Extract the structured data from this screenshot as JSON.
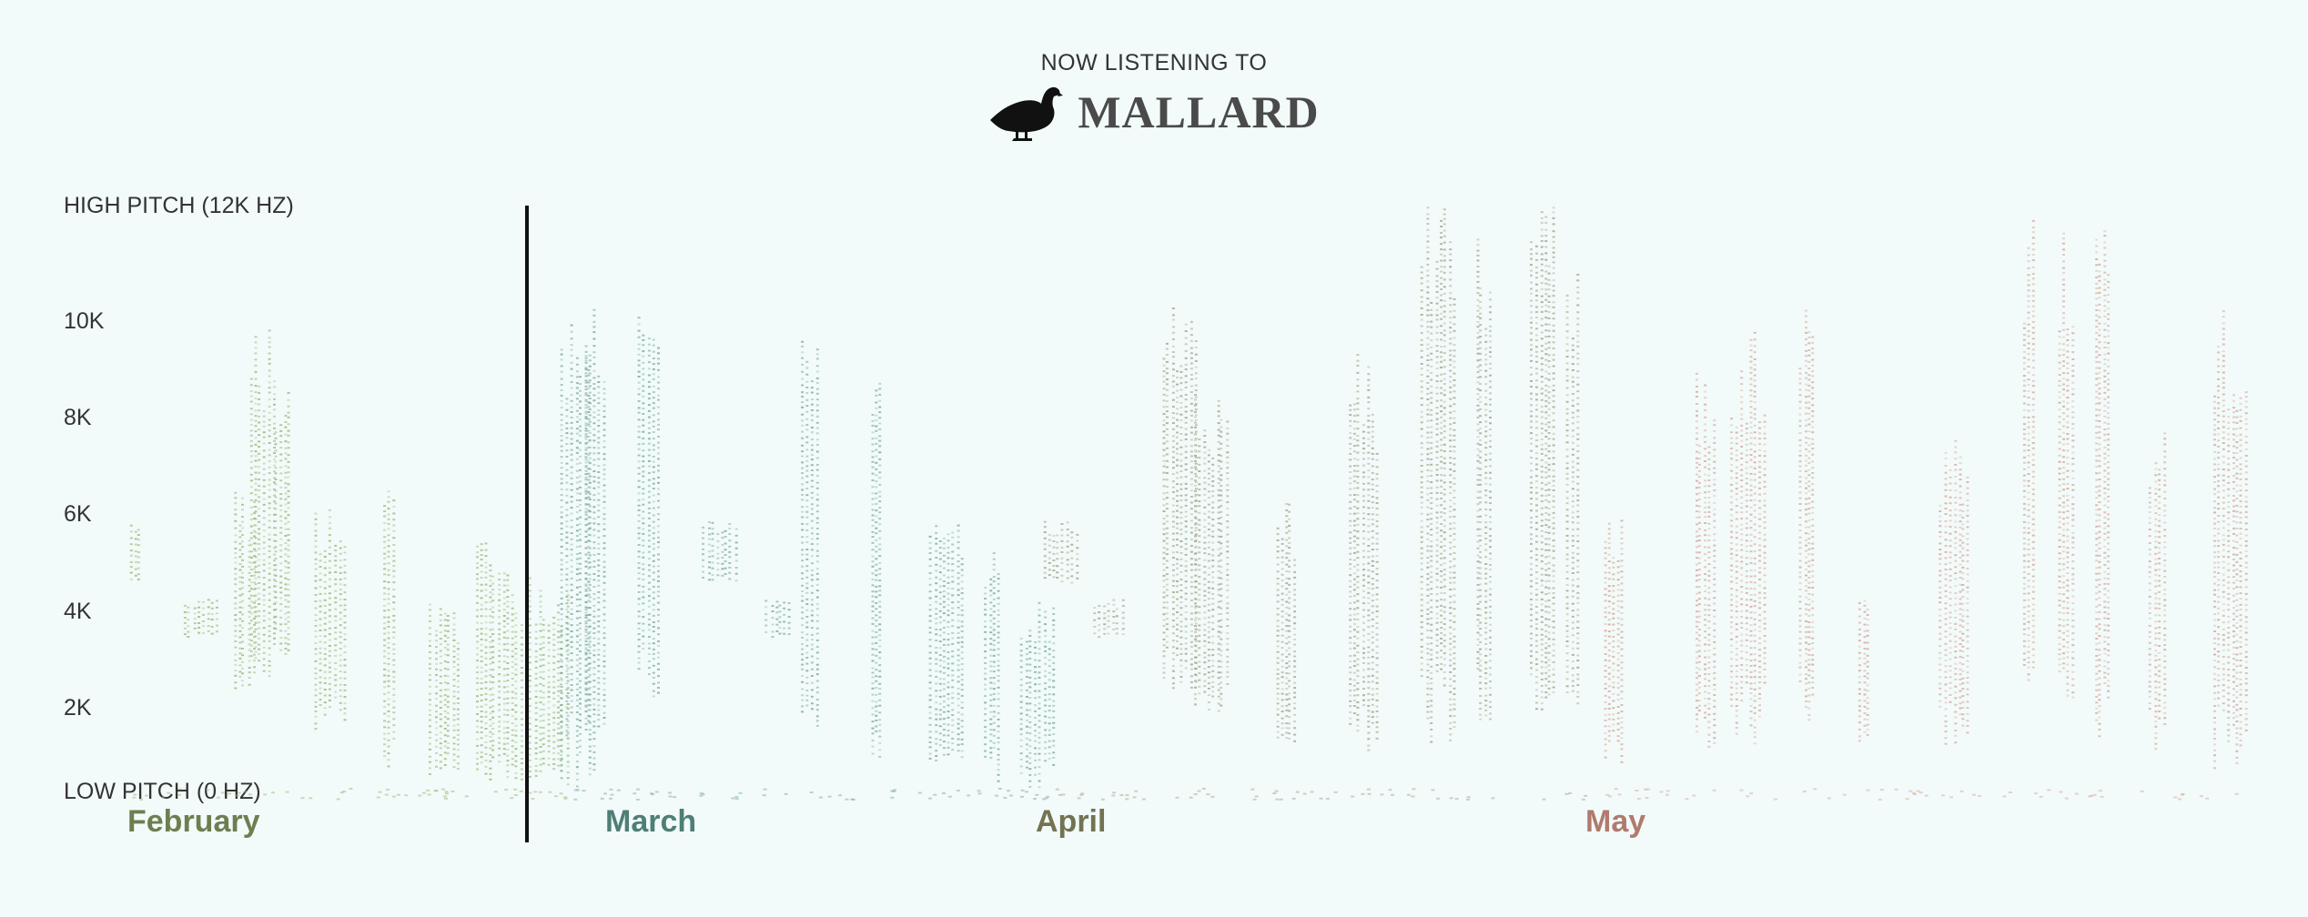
{
  "header": {
    "kicker": "NOW LISTENING TO",
    "species": "MALLARD",
    "icon": "duck-silhouette-icon"
  },
  "chart_data": {
    "type": "heatmap",
    "title": "MALLARD",
    "subtitle": "NOW LISTENING TO",
    "ylabel_top": "HIGH PITCH (12K HZ)",
    "ylabel_bottom": "LOW PITCH (0 HZ)",
    "y_ticks": [
      "10K",
      "8K",
      "6K",
      "4K",
      "2K"
    ],
    "y_tick_values": [
      10000,
      8000,
      6000,
      4000,
      2000
    ],
    "ylim": [
      0,
      12000
    ],
    "x_categories": [
      "February",
      "March",
      "April",
      "May"
    ],
    "month_colors": {
      "February": "#6d7f4f",
      "March": "#4f7e78",
      "April": "#737352",
      "May": "#b07a6d"
    },
    "marker": "vertical line at end of February",
    "series": [
      {
        "name": "February",
        "color": "#9fb878",
        "calls": [
          {
            "x": 140,
            "lo": 4300,
            "hi": 5600
          },
          {
            "x": 200,
            "lo": 3200,
            "hi": 4000
          },
          {
            "x": 255,
            "lo": 2000,
            "hi": 6200
          },
          {
            "x": 272,
            "lo": 2400,
            "hi": 9500
          },
          {
            "x": 300,
            "lo": 2600,
            "hi": 8500
          },
          {
            "x": 345,
            "lo": 1200,
            "hi": 6000
          },
          {
            "x": 420,
            "lo": 500,
            "hi": 7500
          },
          {
            "x": 470,
            "lo": 300,
            "hi": 4000
          },
          {
            "x": 520,
            "lo": 300,
            "hi": 5500
          },
          {
            "x": 560,
            "lo": 200,
            "hi": 4500
          },
          {
            "x": 590,
            "lo": 100,
            "hi": 4200
          }
        ]
      },
      {
        "name": "March",
        "color": "#7fa9a0",
        "calls": [
          {
            "x": 615,
            "lo": 100,
            "hi": 10500
          },
          {
            "x": 640,
            "lo": 300,
            "hi": 11000
          },
          {
            "x": 700,
            "lo": 2000,
            "hi": 10000
          },
          {
            "x": 770,
            "lo": 4300,
            "hi": 5600
          },
          {
            "x": 840,
            "lo": 3200,
            "hi": 4000
          },
          {
            "x": 880,
            "lo": 500,
            "hi": 9500
          },
          {
            "x": 955,
            "lo": 400,
            "hi": 9000
          },
          {
            "x": 1020,
            "lo": 200,
            "hi": 6000
          },
          {
            "x": 1080,
            "lo": 200,
            "hi": 5000
          },
          {
            "x": 1120,
            "lo": 100,
            "hi": 4000
          }
        ]
      },
      {
        "name": "April",
        "color": "#a7a48a",
        "calls": [
          {
            "x": 1145,
            "lo": 4300,
            "hi": 5600
          },
          {
            "x": 1200,
            "lo": 3200,
            "hi": 4000
          },
          {
            "x": 1275,
            "lo": 2000,
            "hi": 10000
          },
          {
            "x": 1310,
            "lo": 1500,
            "hi": 8500
          },
          {
            "x": 1400,
            "lo": 1000,
            "hi": 6000
          },
          {
            "x": 1480,
            "lo": 800,
            "hi": 9000
          },
          {
            "x": 1560,
            "lo": 1000,
            "hi": 12000
          },
          {
            "x": 1620,
            "lo": 1000,
            "hi": 12000
          },
          {
            "x": 1680,
            "lo": 1000,
            "hi": 12000
          },
          {
            "x": 1720,
            "lo": 1500,
            "hi": 11000
          }
        ]
      },
      {
        "name": "May",
        "color": "#d6a79c",
        "calls": [
          {
            "x": 1760,
            "lo": 500,
            "hi": 6000
          },
          {
            "x": 1860,
            "lo": 400,
            "hi": 9000
          },
          {
            "x": 1900,
            "lo": 1000,
            "hi": 9500
          },
          {
            "x": 1975,
            "lo": 1200,
            "hi": 10200
          },
          {
            "x": 2040,
            "lo": 1000,
            "hi": 4000
          },
          {
            "x": 2130,
            "lo": 900,
            "hi": 7500
          },
          {
            "x": 2220,
            "lo": 1000,
            "hi": 12000
          },
          {
            "x": 2260,
            "lo": 1000,
            "hi": 12000
          },
          {
            "x": 2300,
            "lo": 1000,
            "hi": 11500
          },
          {
            "x": 2360,
            "lo": 800,
            "hi": 8000
          },
          {
            "x": 2430,
            "lo": 400,
            "hi": 10000
          }
        ]
      }
    ]
  }
}
